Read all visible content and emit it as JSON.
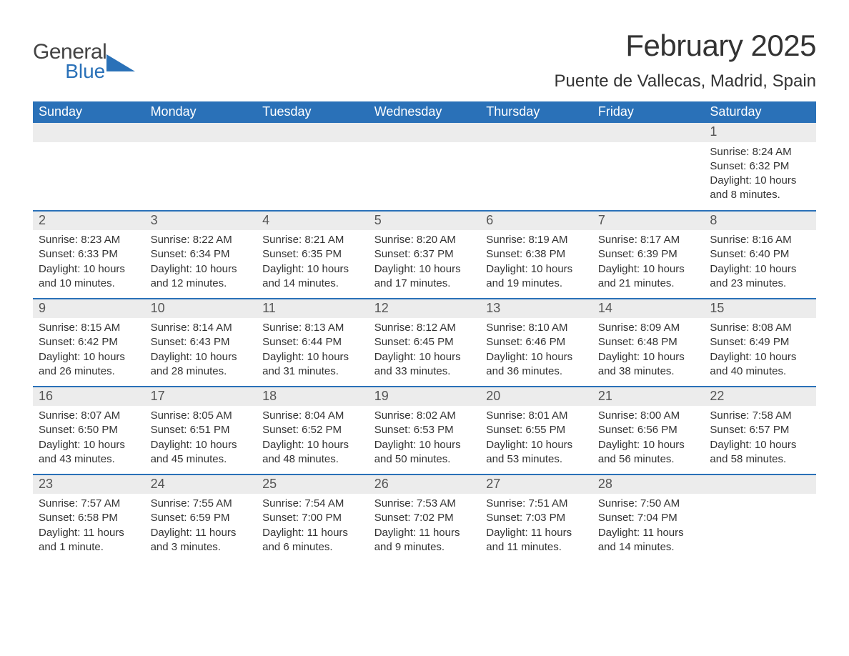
{
  "logo": {
    "general": "General",
    "blue": "Blue",
    "accent_color": "#2a71b8"
  },
  "title": "February 2025",
  "location": "Puente de Vallecas, Madrid, Spain",
  "weekday_header_bg": "#2a71b8",
  "week_divider_color": "#2a71b8",
  "daynum_bg": "#ececec",
  "weekdays": [
    "Sunday",
    "Monday",
    "Tuesday",
    "Wednesday",
    "Thursday",
    "Friday",
    "Saturday"
  ],
  "weeks": [
    {
      "days": [
        {
          "num": "",
          "sunrise": "",
          "sunset": "",
          "daylight": ""
        },
        {
          "num": "",
          "sunrise": "",
          "sunset": "",
          "daylight": ""
        },
        {
          "num": "",
          "sunrise": "",
          "sunset": "",
          "daylight": ""
        },
        {
          "num": "",
          "sunrise": "",
          "sunset": "",
          "daylight": ""
        },
        {
          "num": "",
          "sunrise": "",
          "sunset": "",
          "daylight": ""
        },
        {
          "num": "",
          "sunrise": "",
          "sunset": "",
          "daylight": ""
        },
        {
          "num": "1",
          "sunrise": "Sunrise: 8:24 AM",
          "sunset": "Sunset: 6:32 PM",
          "daylight": "Daylight: 10 hours and 8 minutes."
        }
      ]
    },
    {
      "days": [
        {
          "num": "2",
          "sunrise": "Sunrise: 8:23 AM",
          "sunset": "Sunset: 6:33 PM",
          "daylight": "Daylight: 10 hours and 10 minutes."
        },
        {
          "num": "3",
          "sunrise": "Sunrise: 8:22 AM",
          "sunset": "Sunset: 6:34 PM",
          "daylight": "Daylight: 10 hours and 12 minutes."
        },
        {
          "num": "4",
          "sunrise": "Sunrise: 8:21 AM",
          "sunset": "Sunset: 6:35 PM",
          "daylight": "Daylight: 10 hours and 14 minutes."
        },
        {
          "num": "5",
          "sunrise": "Sunrise: 8:20 AM",
          "sunset": "Sunset: 6:37 PM",
          "daylight": "Daylight: 10 hours and 17 minutes."
        },
        {
          "num": "6",
          "sunrise": "Sunrise: 8:19 AM",
          "sunset": "Sunset: 6:38 PM",
          "daylight": "Daylight: 10 hours and 19 minutes."
        },
        {
          "num": "7",
          "sunrise": "Sunrise: 8:17 AM",
          "sunset": "Sunset: 6:39 PM",
          "daylight": "Daylight: 10 hours and 21 minutes."
        },
        {
          "num": "8",
          "sunrise": "Sunrise: 8:16 AM",
          "sunset": "Sunset: 6:40 PM",
          "daylight": "Daylight: 10 hours and 23 minutes."
        }
      ]
    },
    {
      "days": [
        {
          "num": "9",
          "sunrise": "Sunrise: 8:15 AM",
          "sunset": "Sunset: 6:42 PM",
          "daylight": "Daylight: 10 hours and 26 minutes."
        },
        {
          "num": "10",
          "sunrise": "Sunrise: 8:14 AM",
          "sunset": "Sunset: 6:43 PM",
          "daylight": "Daylight: 10 hours and 28 minutes."
        },
        {
          "num": "11",
          "sunrise": "Sunrise: 8:13 AM",
          "sunset": "Sunset: 6:44 PM",
          "daylight": "Daylight: 10 hours and 31 minutes."
        },
        {
          "num": "12",
          "sunrise": "Sunrise: 8:12 AM",
          "sunset": "Sunset: 6:45 PM",
          "daylight": "Daylight: 10 hours and 33 minutes."
        },
        {
          "num": "13",
          "sunrise": "Sunrise: 8:10 AM",
          "sunset": "Sunset: 6:46 PM",
          "daylight": "Daylight: 10 hours and 36 minutes."
        },
        {
          "num": "14",
          "sunrise": "Sunrise: 8:09 AM",
          "sunset": "Sunset: 6:48 PM",
          "daylight": "Daylight: 10 hours and 38 minutes."
        },
        {
          "num": "15",
          "sunrise": "Sunrise: 8:08 AM",
          "sunset": "Sunset: 6:49 PM",
          "daylight": "Daylight: 10 hours and 40 minutes."
        }
      ]
    },
    {
      "days": [
        {
          "num": "16",
          "sunrise": "Sunrise: 8:07 AM",
          "sunset": "Sunset: 6:50 PM",
          "daylight": "Daylight: 10 hours and 43 minutes."
        },
        {
          "num": "17",
          "sunrise": "Sunrise: 8:05 AM",
          "sunset": "Sunset: 6:51 PM",
          "daylight": "Daylight: 10 hours and 45 minutes."
        },
        {
          "num": "18",
          "sunrise": "Sunrise: 8:04 AM",
          "sunset": "Sunset: 6:52 PM",
          "daylight": "Daylight: 10 hours and 48 minutes."
        },
        {
          "num": "19",
          "sunrise": "Sunrise: 8:02 AM",
          "sunset": "Sunset: 6:53 PM",
          "daylight": "Daylight: 10 hours and 50 minutes."
        },
        {
          "num": "20",
          "sunrise": "Sunrise: 8:01 AM",
          "sunset": "Sunset: 6:55 PM",
          "daylight": "Daylight: 10 hours and 53 minutes."
        },
        {
          "num": "21",
          "sunrise": "Sunrise: 8:00 AM",
          "sunset": "Sunset: 6:56 PM",
          "daylight": "Daylight: 10 hours and 56 minutes."
        },
        {
          "num": "22",
          "sunrise": "Sunrise: 7:58 AM",
          "sunset": "Sunset: 6:57 PM",
          "daylight": "Daylight: 10 hours and 58 minutes."
        }
      ]
    },
    {
      "days": [
        {
          "num": "23",
          "sunrise": "Sunrise: 7:57 AM",
          "sunset": "Sunset: 6:58 PM",
          "daylight": "Daylight: 11 hours and 1 minute."
        },
        {
          "num": "24",
          "sunrise": "Sunrise: 7:55 AM",
          "sunset": "Sunset: 6:59 PM",
          "daylight": "Daylight: 11 hours and 3 minutes."
        },
        {
          "num": "25",
          "sunrise": "Sunrise: 7:54 AM",
          "sunset": "Sunset: 7:00 PM",
          "daylight": "Daylight: 11 hours and 6 minutes."
        },
        {
          "num": "26",
          "sunrise": "Sunrise: 7:53 AM",
          "sunset": "Sunset: 7:02 PM",
          "daylight": "Daylight: 11 hours and 9 minutes."
        },
        {
          "num": "27",
          "sunrise": "Sunrise: 7:51 AM",
          "sunset": "Sunset: 7:03 PM",
          "daylight": "Daylight: 11 hours and 11 minutes."
        },
        {
          "num": "28",
          "sunrise": "Sunrise: 7:50 AM",
          "sunset": "Sunset: 7:04 PM",
          "daylight": "Daylight: 11 hours and 14 minutes."
        },
        {
          "num": "",
          "sunrise": "",
          "sunset": "",
          "daylight": ""
        }
      ]
    }
  ]
}
